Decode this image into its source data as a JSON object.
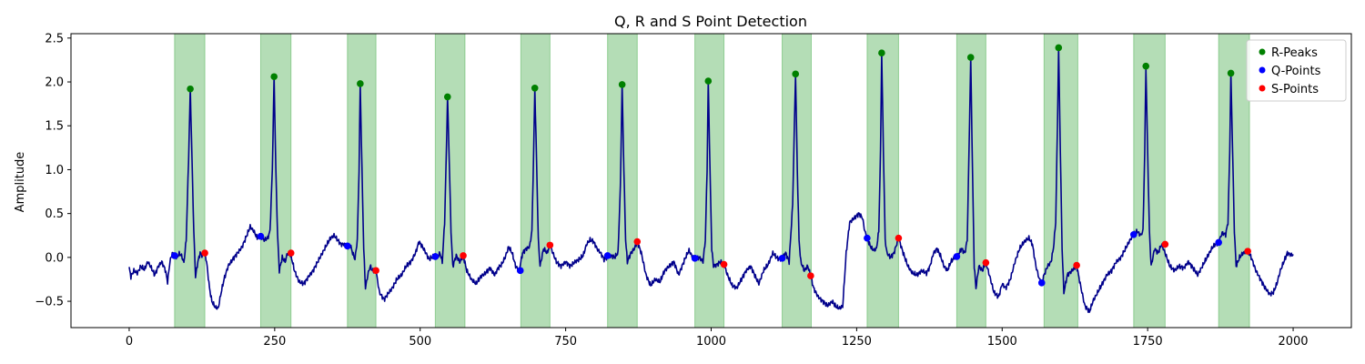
{
  "chart_data": {
    "type": "line",
    "title": "Q, R and S Point Detection",
    "xlabel": "",
    "ylabel": "Amplitude",
    "xlim": [
      -100,
      2100
    ],
    "ylim": [
      -0.8,
      2.55
    ],
    "xticks": [
      0,
      250,
      500,
      750,
      1000,
      1250,
      1500,
      1750,
      2000
    ],
    "yticks": [
      -0.5,
      0.0,
      0.5,
      1.0,
      1.5,
      2.0,
      2.5
    ],
    "ytick_labels": [
      "−0.5",
      "0.0",
      "0.5",
      "1.0",
      "1.5",
      "2.0",
      "2.5"
    ],
    "grid": false,
    "legend_position": "top-right",
    "colors": {
      "signal": "#00008b",
      "r_peaks": "#008000",
      "q_points": "#0000ff",
      "s_points": "#ff0000",
      "qrs_band": "#4caf50"
    },
    "signal_waypoints": [
      [
        0,
        -0.12
      ],
      [
        3,
        -0.22
      ],
      [
        8,
        -0.15
      ],
      [
        14,
        -0.18
      ],
      [
        20,
        -0.1
      ],
      [
        26,
        -0.14
      ],
      [
        32,
        -0.05
      ],
      [
        38,
        -0.12
      ],
      [
        44,
        -0.2
      ],
      [
        50,
        -0.1
      ],
      [
        56,
        -0.05
      ],
      [
        62,
        -0.14
      ],
      [
        66,
        -0.28
      ],
      [
        70,
        -0.05
      ],
      [
        74,
        0.05
      ],
      [
        78,
        0.02
      ],
      [
        82,
        0.0
      ],
      [
        86,
        0.04
      ],
      [
        90,
        0.02
      ],
      [
        94,
        -0.06
      ],
      [
        98,
        0.2
      ],
      [
        102,
        1.1
      ],
      [
        105,
        1.92
      ],
      [
        108,
        1.1
      ],
      [
        111,
        0.3
      ],
      [
        114,
        -0.22
      ],
      [
        118,
        -0.05
      ],
      [
        122,
        0.05
      ],
      [
        126,
        0.02
      ],
      [
        130,
        0.05
      ],
      [
        133,
        -0.05
      ],
      [
        138,
        -0.35
      ],
      [
        142,
        -0.5
      ],
      [
        148,
        -0.57
      ],
      [
        153,
        -0.58
      ],
      [
        158,
        -0.4
      ],
      [
        163,
        -0.25
      ],
      [
        170,
        -0.1
      ],
      [
        178,
        -0.02
      ],
      [
        186,
        0.05
      ],
      [
        194,
        0.12
      ],
      [
        202,
        0.25
      ],
      [
        208,
        0.35
      ],
      [
        214,
        0.3
      ],
      [
        220,
        0.22
      ],
      [
        226,
        0.24
      ],
      [
        232,
        0.2
      ],
      [
        238,
        0.22
      ],
      [
        242,
        0.3
      ],
      [
        246,
        1.0
      ],
      [
        249,
        2.06
      ],
      [
        252,
        1.0
      ],
      [
        255,
        0.25
      ],
      [
        258,
        -0.15
      ],
      [
        263,
        0.0
      ],
      [
        268,
        -0.05
      ],
      [
        272,
        0.05
      ],
      [
        278,
        0.02
      ],
      [
        284,
        -0.15
      ],
      [
        292,
        -0.28
      ],
      [
        300,
        -0.3
      ],
      [
        308,
        -0.22
      ],
      [
        316,
        -0.15
      ],
      [
        324,
        -0.05
      ],
      [
        332,
        0.05
      ],
      [
        340,
        0.15
      ],
      [
        346,
        0.22
      ],
      [
        352,
        0.25
      ],
      [
        358,
        0.2
      ],
      [
        364,
        0.15
      ],
      [
        370,
        0.15
      ],
      [
        375,
        0.12
      ],
      [
        380,
        0.14
      ],
      [
        384,
        0.05
      ],
      [
        388,
        -0.02
      ],
      [
        392,
        0.2
      ],
      [
        395,
        1.0
      ],
      [
        397,
        1.98
      ],
      [
        400,
        1.0
      ],
      [
        403,
        0.1
      ],
      [
        406,
        -0.35
      ],
      [
        410,
        -0.2
      ],
      [
        414,
        -0.1
      ],
      [
        418,
        -0.15
      ],
      [
        424,
        -0.15
      ],
      [
        430,
        -0.4
      ],
      [
        438,
        -0.48
      ],
      [
        444,
        -0.42
      ],
      [
        452,
        -0.35
      ],
      [
        460,
        -0.25
      ],
      [
        468,
        -0.2
      ],
      [
        476,
        -0.1
      ],
      [
        484,
        -0.05
      ],
      [
        492,
        0.05
      ],
      [
        498,
        0.18
      ],
      [
        504,
        0.12
      ],
      [
        510,
        0.05
      ],
      [
        515,
        -0.02
      ],
      [
        520,
        0.0
      ],
      [
        526,
        0.02
      ],
      [
        530,
        0.0
      ],
      [
        534,
        0.05
      ],
      [
        538,
        -0.05
      ],
      [
        542,
        0.4
      ],
      [
        545,
        1.2
      ],
      [
        547,
        1.83
      ],
      [
        550,
        1.1
      ],
      [
        553,
        0.3
      ],
      [
        556,
        -0.1
      ],
      [
        562,
        0.02
      ],
      [
        568,
        -0.05
      ],
      [
        574,
        0.02
      ],
      [
        580,
        -0.15
      ],
      [
        588,
        -0.25
      ],
      [
        596,
        -0.3
      ],
      [
        604,
        -0.22
      ],
      [
        612,
        -0.18
      ],
      [
        620,
        -0.12
      ],
      [
        628,
        -0.2
      ],
      [
        634,
        -0.12
      ],
      [
        640,
        -0.08
      ],
      [
        646,
        0.0
      ],
      [
        652,
        0.12
      ],
      [
        658,
        0.05
      ],
      [
        664,
        -0.1
      ],
      [
        670,
        -0.15
      ],
      [
        676,
        0.05
      ],
      [
        682,
        0.1
      ],
      [
        688,
        0.12
      ],
      [
        692,
        0.3
      ],
      [
        695,
        1.2
      ],
      [
        697,
        1.93
      ],
      [
        700,
        1.1
      ],
      [
        703,
        0.2
      ],
      [
        706,
        -0.1
      ],
      [
        712,
        0.1
      ],
      [
        718,
        0.05
      ],
      [
        723,
        0.14
      ],
      [
        728,
        0.05
      ],
      [
        734,
        -0.05
      ],
      [
        742,
        -0.1
      ],
      [
        750,
        -0.05
      ],
      [
        758,
        -0.1
      ],
      [
        766,
        -0.05
      ],
      [
        774,
        -0.02
      ],
      [
        780,
        0.02
      ],
      [
        786,
        0.15
      ],
      [
        792,
        0.2
      ],
      [
        798,
        0.18
      ],
      [
        804,
        0.1
      ],
      [
        810,
        0.05
      ],
      [
        816,
        -0.02
      ],
      [
        822,
        0.0
      ],
      [
        828,
        0.02
      ],
      [
        834,
        0.0
      ],
      [
        840,
        0.05
      ],
      [
        844,
        0.8
      ],
      [
        847,
        1.97
      ],
      [
        850,
        1.0
      ],
      [
        853,
        0.2
      ],
      [
        856,
        -0.05
      ],
      [
        862,
        0.05
      ],
      [
        868,
        0.1
      ],
      [
        873,
        0.18
      ],
      [
        880,
        0.05
      ],
      [
        888,
        -0.2
      ],
      [
        896,
        -0.32
      ],
      [
        904,
        -0.25
      ],
      [
        912,
        -0.28
      ],
      [
        920,
        -0.15
      ],
      [
        928,
        -0.1
      ],
      [
        936,
        -0.05
      ],
      [
        944,
        -0.2
      ],
      [
        950,
        -0.1
      ],
      [
        956,
        0.0
      ],
      [
        962,
        0.08
      ],
      [
        968,
        0.0
      ],
      [
        974,
        -0.02
      ],
      [
        980,
        0.0
      ],
      [
        986,
        -0.05
      ],
      [
        990,
        0.2
      ],
      [
        993,
        1.0
      ],
      [
        995,
        2.01
      ],
      [
        998,
        1.0
      ],
      [
        1001,
        0.1
      ],
      [
        1004,
        -0.1
      ],
      [
        1010,
        -0.08
      ],
      [
        1016,
        -0.05
      ],
      [
        1022,
        -0.08
      ],
      [
        1028,
        -0.2
      ],
      [
        1036,
        -0.32
      ],
      [
        1044,
        -0.35
      ],
      [
        1052,
        -0.25
      ],
      [
        1060,
        -0.15
      ],
      [
        1068,
        -0.1
      ],
      [
        1076,
        -0.22
      ],
      [
        1082,
        -0.3
      ],
      [
        1090,
        -0.15
      ],
      [
        1098,
        -0.08
      ],
      [
        1106,
        0.05
      ],
      [
        1112,
        0.0
      ],
      [
        1118,
        -0.02
      ],
      [
        1122,
        0.0
      ],
      [
        1128,
        0.05
      ],
      [
        1134,
        -0.05
      ],
      [
        1140,
        0.6
      ],
      [
        1143,
        1.5
      ],
      [
        1145,
        2.09
      ],
      [
        1148,
        1.0
      ],
      [
        1151,
        0.2
      ],
      [
        1154,
        -0.05
      ],
      [
        1160,
        -0.15
      ],
      [
        1166,
        -0.1
      ],
      [
        1171,
        -0.21
      ],
      [
        1176,
        -0.35
      ],
      [
        1184,
        -0.45
      ],
      [
        1192,
        -0.5
      ],
      [
        1200,
        -0.55
      ],
      [
        1208,
        -0.5
      ],
      [
        1214,
        -0.56
      ],
      [
        1220,
        -0.58
      ],
      [
        1226,
        -0.56
      ],
      [
        1232,
        0.05
      ],
      [
        1238,
        0.4
      ],
      [
        1246,
        0.45
      ],
      [
        1254,
        0.5
      ],
      [
        1260,
        0.45
      ],
      [
        1264,
        0.3
      ],
      [
        1268,
        0.22
      ],
      [
        1272,
        0.15
      ],
      [
        1276,
        0.1
      ],
      [
        1280,
        0.08
      ],
      [
        1284,
        0.1
      ],
      [
        1288,
        0.3
      ],
      [
        1291,
        1.2
      ],
      [
        1293,
        2.33
      ],
      [
        1296,
        1.2
      ],
      [
        1299,
        0.2
      ],
      [
        1302,
        0.05
      ],
      [
        1308,
        0.0
      ],
      [
        1314,
        0.05
      ],
      [
        1322,
        0.22
      ],
      [
        1330,
        0.05
      ],
      [
        1338,
        -0.1
      ],
      [
        1346,
        -0.18
      ],
      [
        1354,
        -0.2
      ],
      [
        1362,
        -0.15
      ],
      [
        1370,
        -0.18
      ],
      [
        1376,
        -0.1
      ],
      [
        1382,
        0.05
      ],
      [
        1388,
        0.1
      ],
      [
        1394,
        0.02
      ],
      [
        1400,
        -0.1
      ],
      [
        1406,
        -0.15
      ],
      [
        1412,
        -0.05
      ],
      [
        1418,
        0.0
      ],
      [
        1424,
        0.02
      ],
      [
        1430,
        0.1
      ],
      [
        1436,
        0.05
      ],
      [
        1440,
        0.2
      ],
      [
        1443,
        1.2
      ],
      [
        1446,
        2.28
      ],
      [
        1449,
        1.0
      ],
      [
        1452,
        -0.1
      ],
      [
        1455,
        -0.35
      ],
      [
        1460,
        -0.1
      ],
      [
        1466,
        -0.15
      ],
      [
        1472,
        -0.06
      ],
      [
        1478,
        -0.2
      ],
      [
        1486,
        -0.4
      ],
      [
        1494,
        -0.45
      ],
      [
        1500,
        -0.3
      ],
      [
        1506,
        -0.35
      ],
      [
        1514,
        -0.25
      ],
      [
        1522,
        -0.05
      ],
      [
        1530,
        0.1
      ],
      [
        1538,
        0.18
      ],
      [
        1546,
        0.22
      ],
      [
        1552,
        0.15
      ],
      [
        1558,
        -0.1
      ],
      [
        1564,
        -0.25
      ],
      [
        1568,
        -0.3
      ],
      [
        1572,
        -0.2
      ],
      [
        1578,
        -0.1
      ],
      [
        1584,
        -0.05
      ],
      [
        1588,
        0.1
      ],
      [
        1592,
        0.4
      ],
      [
        1595,
        1.5
      ],
      [
        1597,
        2.39
      ],
      [
        1600,
        1.2
      ],
      [
        1603,
        0.1
      ],
      [
        1606,
        -0.4
      ],
      [
        1612,
        -0.2
      ],
      [
        1620,
        -0.15
      ],
      [
        1628,
        -0.09
      ],
      [
        1634,
        -0.3
      ],
      [
        1642,
        -0.55
      ],
      [
        1650,
        -0.62
      ],
      [
        1656,
        -0.5
      ],
      [
        1664,
        -0.4
      ],
      [
        1672,
        -0.3
      ],
      [
        1680,
        -0.2
      ],
      [
        1688,
        -0.15
      ],
      [
        1696,
        -0.05
      ],
      [
        1704,
        0.0
      ],
      [
        1712,
        0.1
      ],
      [
        1720,
        0.2
      ],
      [
        1726,
        0.26
      ],
      [
        1732,
        0.3
      ],
      [
        1738,
        0.25
      ],
      [
        1742,
        0.3
      ],
      [
        1745,
        1.2
      ],
      [
        1747,
        2.18
      ],
      [
        1750,
        1.2
      ],
      [
        1753,
        0.3
      ],
      [
        1756,
        -0.1
      ],
      [
        1762,
        0.1
      ],
      [
        1768,
        0.05
      ],
      [
        1774,
        0.15
      ],
      [
        1780,
        0.05
      ],
      [
        1788,
        -0.1
      ],
      [
        1796,
        -0.15
      ],
      [
        1804,
        -0.1
      ],
      [
        1812,
        -0.12
      ],
      [
        1820,
        -0.05
      ],
      [
        1828,
        -0.12
      ],
      [
        1836,
        -0.2
      ],
      [
        1844,
        -0.1
      ],
      [
        1852,
        0.0
      ],
      [
        1860,
        0.1
      ],
      [
        1866,
        0.15
      ],
      [
        1872,
        0.17
      ],
      [
        1878,
        0.28
      ],
      [
        1884,
        0.26
      ],
      [
        1888,
        0.4
      ],
      [
        1891,
        1.2
      ],
      [
        1893,
        2.1
      ],
      [
        1896,
        1.2
      ],
      [
        1899,
        0.3
      ],
      [
        1902,
        -0.1
      ],
      [
        1908,
        0.0
      ],
      [
        1914,
        0.05
      ],
      [
        1922,
        0.07
      ],
      [
        1928,
        0.0
      ],
      [
        1936,
        -0.15
      ],
      [
        1944,
        -0.25
      ],
      [
        1952,
        -0.35
      ],
      [
        1960,
        -0.42
      ],
      [
        1966,
        -0.4
      ],
      [
        1972,
        -0.3
      ],
      [
        1978,
        -0.15
      ],
      [
        1984,
        -0.05
      ],
      [
        1990,
        0.05
      ],
      [
        1996,
        0.03
      ],
      [
        2000,
        0.03
      ]
    ],
    "r_peaks": {
      "name": "R-Peaks",
      "x": [
        105,
        249,
        397,
        547,
        697,
        847,
        995,
        1145,
        1293,
        1446,
        1597,
        1747,
        1893
      ],
      "y": [
        1.92,
        2.06,
        1.98,
        1.83,
        1.93,
        1.97,
        2.01,
        2.09,
        2.33,
        2.28,
        2.39,
        2.18,
        2.1
      ]
    },
    "q_points": {
      "name": "Q-Points",
      "x": [
        78,
        226,
        375,
        526,
        672,
        822,
        972,
        1122,
        1268,
        1422,
        1568,
        1726,
        1872
      ],
      "y": [
        0.02,
        0.24,
        0.13,
        0.01,
        -0.15,
        0.02,
        -0.01,
        -0.01,
        0.22,
        0.01,
        -0.29,
        0.26,
        0.17
      ]
    },
    "s_points": {
      "name": "S-Points",
      "x": [
        130,
        278,
        424,
        574,
        723,
        873,
        1022,
        1171,
        1322,
        1472,
        1628,
        1780,
        1922
      ],
      "y": [
        0.05,
        0.05,
        -0.15,
        0.02,
        0.14,
        0.18,
        -0.08,
        -0.21,
        0.22,
        -0.06,
        -0.09,
        0.15,
        0.07
      ]
    },
    "qrs_bands": [
      [
        78,
        130
      ],
      [
        226,
        278
      ],
      [
        375,
        424
      ],
      [
        526,
        577
      ],
      [
        673,
        723
      ],
      [
        822,
        873
      ],
      [
        972,
        1022
      ],
      [
        1122,
        1172
      ],
      [
        1268,
        1322
      ],
      [
        1422,
        1472
      ],
      [
        1572,
        1630
      ],
      [
        1726,
        1780
      ],
      [
        1872,
        1925
      ]
    ]
  }
}
